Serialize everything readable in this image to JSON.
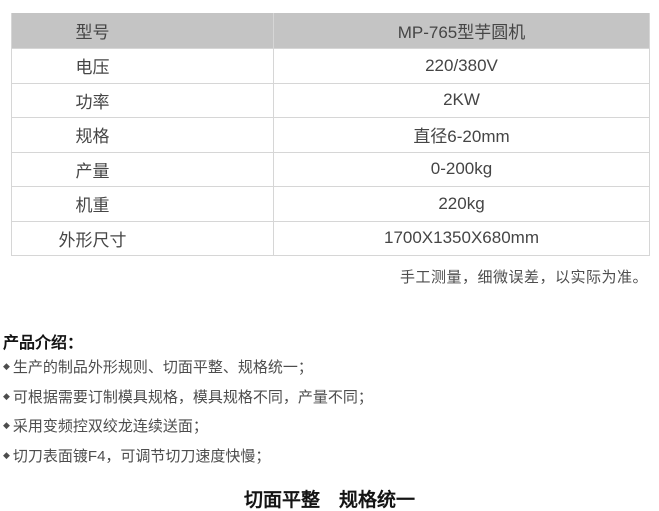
{
  "colors": {
    "header_bg": "#c4c4c4",
    "border": "#d6d6d6",
    "table_text": "#454545",
    "body_text": "#4d4d4d",
    "heading_text": "#141414"
  },
  "spec_table": {
    "rows": [
      {
        "label": "型号",
        "value": "MP-765型芋圆机"
      },
      {
        "label": "电压",
        "value": "220/380V"
      },
      {
        "label": "功率",
        "value": "2KW"
      },
      {
        "label": "规格",
        "value": "直径6-20mm"
      },
      {
        "label": "产量",
        "value": "0-200kg"
      },
      {
        "label": "机重",
        "value": "220kg"
      },
      {
        "label": "外形尺寸",
        "value": "1700X1350X680mm"
      }
    ]
  },
  "note": {
    "text": "手工测量，细微误差，以实际为准。"
  },
  "intro": {
    "heading": "产品介绍：",
    "bullet_icon": "◆",
    "bullets": [
      "生产的制品外形规则、切面平整、规格统一；",
      "可根据需要订制模具规格，模具规格不同，产量不同；",
      "采用变频控双绞龙连续送面；",
      "切刀表面镀F4，可调节切刀速度快慢；"
    ]
  },
  "footer": {
    "slogan": "切面平整　规格统一"
  }
}
